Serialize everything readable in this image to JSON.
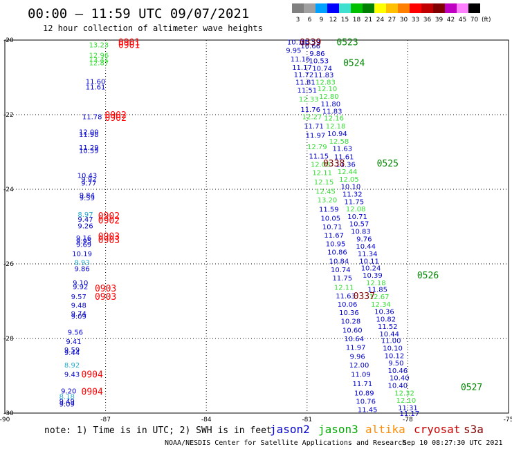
{
  "header": {
    "title": "00:00 – 11:59 UTC 09/07/2021",
    "subtitle": "12 hour collection of altimeter wave heights"
  },
  "legend_bar": {
    "labels": [
      "3",
      "6",
      "9",
      "12",
      "15",
      "18",
      "21",
      "24",
      "27",
      "30",
      "33",
      "36",
      "39",
      "42",
      "45",
      "70"
    ],
    "unit": "(ft)",
    "colors": [
      "#808080",
      "#a0a0a0",
      "#00a0ff",
      "#0000ff",
      "#40e0d0",
      "#00c000",
      "#008000",
      "#ffff00",
      "#ffc000",
      "#ff8000",
      "#ff0000",
      "#c00000",
      "#800000",
      "#c000c0",
      "#ff80ff",
      "#000000"
    ]
  },
  "footer": {
    "note": "note: 1) Time is in UTC; 2) SWH is in feet",
    "missions": [
      {
        "name": "jason2",
        "color": "#0000cc"
      },
      {
        "name": "jason3",
        "color": "#00aa00"
      },
      {
        "name": "altika",
        "color": "#ff8c00"
      },
      {
        "name": "cryosat",
        "color": "#cc0000"
      },
      {
        "name": "s3a",
        "color": "#800000"
      }
    ],
    "credit": "NOAA/NESDIS Center for Satellite Applications and Research",
    "timestamp": "Sep 10 08:27:30 UTC 2021"
  },
  "chart_data": {
    "type": "scatter",
    "xlim": [
      -90,
      -75
    ],
    "ylim": [
      -30,
      -20
    ],
    "xticks": [
      "-90",
      "-87",
      "-84",
      "-81",
      "-78",
      "-75"
    ],
    "yticks": [
      "-20",
      "-22",
      "-24",
      "-26",
      "-28",
      "-30"
    ],
    "colors": {
      "blue": "#0000cc",
      "green": "#33dd33",
      "lightblue": "#22aacc",
      "red": "#ff0000",
      "darkred": "#800000",
      "darkgreen": "#008800"
    },
    "track_labels": [
      {
        "text": "0901",
        "lon": -86.3,
        "lat": -20.05,
        "color": "red"
      },
      {
        "text": "0901",
        "lon": -86.3,
        "lat": -20.12,
        "color": "red"
      },
      {
        "text": "0902",
        "lon": -86.7,
        "lat": -22.0,
        "color": "red"
      },
      {
        "text": "0902",
        "lon": -86.7,
        "lat": -22.07,
        "color": "red"
      },
      {
        "text": "0902",
        "lon": -86.9,
        "lat": -24.7,
        "color": "red"
      },
      {
        "text": "0902",
        "lon": -86.9,
        "lat": -24.82,
        "color": "red"
      },
      {
        "text": "0903",
        "lon": -86.9,
        "lat": -25.25,
        "color": "red"
      },
      {
        "text": "0903",
        "lon": -86.9,
        "lat": -25.35,
        "color": "red"
      },
      {
        "text": "0903",
        "lon": -87.0,
        "lat": -26.65,
        "color": "red"
      },
      {
        "text": "0903",
        "lon": -87.0,
        "lat": -26.87,
        "color": "red"
      },
      {
        "text": "0904",
        "lon": -87.4,
        "lat": -28.95,
        "color": "red"
      },
      {
        "text": "0904",
        "lon": -87.4,
        "lat": -29.42,
        "color": "red"
      },
      {
        "text": "0339",
        "lon": -80.9,
        "lat": -20.05,
        "color": "darkred"
      },
      {
        "text": "0338",
        "lon": -80.2,
        "lat": -23.3,
        "color": "darkred"
      },
      {
        "text": "0337",
        "lon": -79.3,
        "lat": -26.85,
        "color": "darkred"
      },
      {
        "text": "0523",
        "lon": -79.8,
        "lat": -20.05,
        "color": "darkgreen"
      },
      {
        "text": "0524",
        "lon": -79.6,
        "lat": -20.6,
        "color": "darkgreen"
      },
      {
        "text": "0525",
        "lon": -78.6,
        "lat": -23.3,
        "color": "darkgreen"
      },
      {
        "text": "0526",
        "lon": -77.4,
        "lat": -26.3,
        "color": "darkgreen"
      },
      {
        "text": "0527",
        "lon": -76.1,
        "lat": -29.3,
        "color": "darkgreen"
      }
    ],
    "observations": [
      {
        "v": "13.23",
        "lon": -87.2,
        "lat": -20.12,
        "c": "green"
      },
      {
        "v": "12.96",
        "lon": -87.2,
        "lat": -20.4,
        "c": "green"
      },
      {
        "v": "13.41",
        "lon": -87.2,
        "lat": -20.52,
        "c": "green"
      },
      {
        "v": "12.87",
        "lon": -87.2,
        "lat": -20.6,
        "c": "green"
      },
      {
        "v": "11.60",
        "lon": -87.3,
        "lat": -21.1,
        "c": "blue"
      },
      {
        "v": "11.61",
        "lon": -87.3,
        "lat": -21.25,
        "c": "blue"
      },
      {
        "v": "11.78",
        "lon": -87.4,
        "lat": -22.05,
        "c": "blue"
      },
      {
        "v": "12.00",
        "lon": -87.5,
        "lat": -22.45,
        "c": "blue"
      },
      {
        "v": "11.98",
        "lon": -87.5,
        "lat": -22.52,
        "c": "blue"
      },
      {
        "v": "11.29",
        "lon": -87.5,
        "lat": -22.87,
        "c": "blue"
      },
      {
        "v": "10.59",
        "lon": -87.5,
        "lat": -22.95,
        "c": "blue"
      },
      {
        "v": "10.43",
        "lon": -87.55,
        "lat": -23.62,
        "c": "blue"
      },
      {
        "v": "9.92",
        "lon": -87.5,
        "lat": -23.72,
        "c": "blue"
      },
      {
        "v": "9.77",
        "lon": -87.5,
        "lat": -23.82,
        "c": "blue"
      },
      {
        "v": "9.84",
        "lon": -87.55,
        "lat": -24.15,
        "c": "blue"
      },
      {
        "v": "9.59",
        "lon": -87.55,
        "lat": -24.22,
        "c": "blue"
      },
      {
        "v": "8.97",
        "lon": -87.6,
        "lat": -24.67,
        "c": "lightblue"
      },
      {
        "v": "9.47",
        "lon": -87.6,
        "lat": -24.8,
        "c": "blue"
      },
      {
        "v": "9.26",
        "lon": -87.6,
        "lat": -24.97,
        "c": "blue"
      },
      {
        "v": "9.16",
        "lon": -87.65,
        "lat": -25.3,
        "c": "blue"
      },
      {
        "v": "9.95",
        "lon": -87.65,
        "lat": -25.38,
        "c": "blue"
      },
      {
        "v": "9.69",
        "lon": -87.65,
        "lat": -25.47,
        "c": "blue"
      },
      {
        "v": "10.19",
        "lon": -87.7,
        "lat": -25.72,
        "c": "blue"
      },
      {
        "v": "8.93",
        "lon": -87.7,
        "lat": -25.95,
        "c": "lightblue"
      },
      {
        "v": "9.86",
        "lon": -87.7,
        "lat": -26.12,
        "c": "blue"
      },
      {
        "v": "9.10",
        "lon": -87.75,
        "lat": -26.5,
        "c": "blue"
      },
      {
        "v": "9.92",
        "lon": -87.75,
        "lat": -26.6,
        "c": "blue"
      },
      {
        "v": "9.57",
        "lon": -87.8,
        "lat": -26.87,
        "c": "blue"
      },
      {
        "v": "9.48",
        "lon": -87.8,
        "lat": -27.1,
        "c": "blue"
      },
      {
        "v": "9.74",
        "lon": -87.8,
        "lat": -27.32,
        "c": "blue"
      },
      {
        "v": "9.09",
        "lon": -87.8,
        "lat": -27.4,
        "c": "blue"
      },
      {
        "v": "9.56",
        "lon": -87.9,
        "lat": -27.82,
        "c": "blue"
      },
      {
        "v": "9.41",
        "lon": -87.95,
        "lat": -28.07,
        "c": "blue"
      },
      {
        "v": "9.59",
        "lon": -88.0,
        "lat": -28.3,
        "c": "blue"
      },
      {
        "v": "9.44",
        "lon": -88.0,
        "lat": -28.37,
        "c": "blue"
      },
      {
        "v": "8.92",
        "lon": -88.0,
        "lat": -28.7,
        "c": "lightblue"
      },
      {
        "v": "9.43",
        "lon": -88.0,
        "lat": -28.95,
        "c": "blue"
      },
      {
        "v": "9.20",
        "lon": -88.1,
        "lat": -29.4,
        "c": "blue"
      },
      {
        "v": "8.18",
        "lon": -88.15,
        "lat": -29.55,
        "c": "lightblue"
      },
      {
        "v": "9.49",
        "lon": -88.15,
        "lat": -29.68,
        "c": "blue"
      },
      {
        "v": "9.09",
        "lon": -88.15,
        "lat": -29.75,
        "c": "blue"
      },
      {
        "v": "10.10",
        "lon": -81.3,
        "lat": -20.05,
        "c": "blue"
      },
      {
        "v": "10.59",
        "lon": -80.9,
        "lat": -20.05,
        "c": "blue"
      },
      {
        "v": "9.95",
        "lon": -81.4,
        "lat": -20.27,
        "c": "blue"
      },
      {
        "v": "10.66",
        "lon": -80.9,
        "lat": -20.15,
        "c": "blue"
      },
      {
        "v": "9.86",
        "lon": -80.7,
        "lat": -20.35,
        "c": "blue"
      },
      {
        "v": "11.16",
        "lon": -81.2,
        "lat": -20.5,
        "c": "blue"
      },
      {
        "v": "10.53",
        "lon": -80.65,
        "lat": -20.55,
        "c": "blue"
      },
      {
        "v": "11.17",
        "lon": -81.15,
        "lat": -20.72,
        "c": "blue"
      },
      {
        "v": "10.74",
        "lon": -80.55,
        "lat": -20.75,
        "c": "blue"
      },
      {
        "v": "11.72",
        "lon": -81.1,
        "lat": -20.92,
        "c": "blue"
      },
      {
        "v": "11.83",
        "lon": -80.5,
        "lat": -20.93,
        "c": "blue"
      },
      {
        "v": "11.81",
        "lon": -81.05,
        "lat": -21.12,
        "c": "blue"
      },
      {
        "v": "12.83",
        "lon": -80.45,
        "lat": -21.12,
        "c": "green"
      },
      {
        "v": "11.51",
        "lon": -81.0,
        "lat": -21.33,
        "c": "blue"
      },
      {
        "v": "12.10",
        "lon": -80.4,
        "lat": -21.3,
        "c": "green"
      },
      {
        "v": "12.33",
        "lon": -80.95,
        "lat": -21.57,
        "c": "green"
      },
      {
        "v": "12.80",
        "lon": -80.35,
        "lat": -21.5,
        "c": "green"
      },
      {
        "v": "11.80",
        "lon": -80.3,
        "lat": -21.7,
        "c": "blue"
      },
      {
        "v": "11.76",
        "lon": -80.9,
        "lat": -21.85,
        "c": "blue"
      },
      {
        "v": "11.83",
        "lon": -80.25,
        "lat": -21.9,
        "c": "blue"
      },
      {
        "v": "12.27",
        "lon": -80.85,
        "lat": -22.05,
        "c": "green"
      },
      {
        "v": "12.16",
        "lon": -80.2,
        "lat": -22.08,
        "c": "green"
      },
      {
        "v": "11.71",
        "lon": -80.8,
        "lat": -22.3,
        "c": "blue"
      },
      {
        "v": "12.18",
        "lon": -80.15,
        "lat": -22.3,
        "c": "green"
      },
      {
        "v": "11.97",
        "lon": -80.75,
        "lat": -22.55,
        "c": "blue"
      },
      {
        "v": "10.94",
        "lon": -80.1,
        "lat": -22.5,
        "c": "blue"
      },
      {
        "v": "12.79",
        "lon": -80.7,
        "lat": -22.85,
        "c": "green"
      },
      {
        "v": "12.58",
        "lon": -80.05,
        "lat": -22.7,
        "c": "green"
      },
      {
        "v": "11.15",
        "lon": -80.65,
        "lat": -23.1,
        "c": "blue"
      },
      {
        "v": "11.63",
        "lon": -79.95,
        "lat": -22.9,
        "c": "blue"
      },
      {
        "v": "11.61",
        "lon": -79.9,
        "lat": -23.12,
        "c": "blue"
      },
      {
        "v": "12.08",
        "lon": -80.6,
        "lat": -23.32,
        "c": "green"
      },
      {
        "v": "11.36",
        "lon": -79.85,
        "lat": -23.32,
        "c": "blue"
      },
      {
        "v": "12.11",
        "lon": -80.55,
        "lat": -23.55,
        "c": "green"
      },
      {
        "v": "12.44",
        "lon": -79.8,
        "lat": -23.52,
        "c": "green"
      },
      {
        "v": "12.15",
        "lon": -80.5,
        "lat": -23.8,
        "c": "green"
      },
      {
        "v": "12.05",
        "lon": -79.75,
        "lat": -23.72,
        "c": "green"
      },
      {
        "v": "10.10",
        "lon": -79.7,
        "lat": -23.92,
        "c": "blue"
      },
      {
        "v": "12.45",
        "lon": -80.45,
        "lat": -24.05,
        "c": "green"
      },
      {
        "v": "11.32",
        "lon": -79.65,
        "lat": -24.12,
        "c": "blue"
      },
      {
        "v": "13.20",
        "lon": -80.4,
        "lat": -24.28,
        "c": "green"
      },
      {
        "v": "11.75",
        "lon": -79.6,
        "lat": -24.32,
        "c": "blue"
      },
      {
        "v": "11.59",
        "lon": -80.35,
        "lat": -24.53,
        "c": "blue"
      },
      {
        "v": "12.08",
        "lon": -79.55,
        "lat": -24.52,
        "c": "green"
      },
      {
        "v": "10.05",
        "lon": -80.3,
        "lat": -24.77,
        "c": "blue"
      },
      {
        "v": "10.71",
        "lon": -79.5,
        "lat": -24.72,
        "c": "blue"
      },
      {
        "v": "10.71",
        "lon": -80.25,
        "lat": -25.0,
        "c": "blue"
      },
      {
        "v": "10.57",
        "lon": -79.45,
        "lat": -24.92,
        "c": "blue"
      },
      {
        "v": "10.83",
        "lon": -79.4,
        "lat": -25.12,
        "c": "blue"
      },
      {
        "v": "11.67",
        "lon": -80.2,
        "lat": -25.22,
        "c": "blue"
      },
      {
        "v": "9.76",
        "lon": -79.3,
        "lat": -25.32,
        "c": "blue"
      },
      {
        "v": "10.95",
        "lon": -80.15,
        "lat": -25.45,
        "c": "blue"
      },
      {
        "v": "10.44",
        "lon": -79.25,
        "lat": -25.52,
        "c": "blue"
      },
      {
        "v": "10.86",
        "lon": -80.1,
        "lat": -25.68,
        "c": "blue"
      },
      {
        "v": "11.34",
        "lon": -79.2,
        "lat": -25.72,
        "c": "blue"
      },
      {
        "v": "10.84",
        "lon": -80.05,
        "lat": -25.92,
        "c": "blue"
      },
      {
        "v": "10.11",
        "lon": -79.15,
        "lat": -25.92,
        "c": "blue"
      },
      {
        "v": "10.24",
        "lon": -79.1,
        "lat": -26.1,
        "c": "blue"
      },
      {
        "v": "10.74",
        "lon": -80.0,
        "lat": -26.15,
        "c": "blue"
      },
      {
        "v": "10.39",
        "lon": -79.05,
        "lat": -26.3,
        "c": "blue"
      },
      {
        "v": "11.75",
        "lon": -79.95,
        "lat": -26.37,
        "c": "blue"
      },
      {
        "v": "12.18",
        "lon": -78.95,
        "lat": -26.5,
        "c": "green"
      },
      {
        "v": "12.11",
        "lon": -79.9,
        "lat": -26.62,
        "c": "green"
      },
      {
        "v": "11.85",
        "lon": -78.9,
        "lat": -26.68,
        "c": "blue"
      },
      {
        "v": "11.63",
        "lon": -79.85,
        "lat": -26.85,
        "c": "blue"
      },
      {
        "v": "12.67",
        "lon": -78.85,
        "lat": -26.87,
        "c": "green"
      },
      {
        "v": "10.06",
        "lon": -79.8,
        "lat": -27.07,
        "c": "blue"
      },
      {
        "v": "12.34",
        "lon": -78.8,
        "lat": -27.07,
        "c": "green"
      },
      {
        "v": "10.36",
        "lon": -79.75,
        "lat": -27.3,
        "c": "blue"
      },
      {
        "v": "10.36",
        "lon": -78.7,
        "lat": -27.27,
        "c": "blue"
      },
      {
        "v": "10.28",
        "lon": -79.7,
        "lat": -27.53,
        "c": "blue"
      },
      {
        "v": "10.82",
        "lon": -78.65,
        "lat": -27.47,
        "c": "blue"
      },
      {
        "v": "11.52",
        "lon": -78.6,
        "lat": -27.67,
        "c": "blue"
      },
      {
        "v": "10.60",
        "lon": -79.65,
        "lat": -27.77,
        "c": "blue"
      },
      {
        "v": "10.44",
        "lon": -78.55,
        "lat": -27.87,
        "c": "blue"
      },
      {
        "v": "10.64",
        "lon": -79.6,
        "lat": -28.0,
        "c": "blue"
      },
      {
        "v": "11.00",
        "lon": -78.5,
        "lat": -28.05,
        "c": "blue"
      },
      {
        "v": "11.97",
        "lon": -79.55,
        "lat": -28.23,
        "c": "blue"
      },
      {
        "v": "10.10",
        "lon": -78.45,
        "lat": -28.25,
        "c": "blue"
      },
      {
        "v": "9.96",
        "lon": -79.5,
        "lat": -28.47,
        "c": "blue"
      },
      {
        "v": "10.12",
        "lon": -78.4,
        "lat": -28.45,
        "c": "blue"
      },
      {
        "v": "9.50",
        "lon": -78.35,
        "lat": -28.65,
        "c": "blue"
      },
      {
        "v": "12.00",
        "lon": -79.45,
        "lat": -28.7,
        "c": "blue"
      },
      {
        "v": "10.46",
        "lon": -78.3,
        "lat": -28.85,
        "c": "blue"
      },
      {
        "v": "11.09",
        "lon": -79.4,
        "lat": -28.95,
        "c": "blue"
      },
      {
        "v": "10.40",
        "lon": -78.25,
        "lat": -29.05,
        "c": "blue"
      },
      {
        "v": "11.71",
        "lon": -79.35,
        "lat": -29.2,
        "c": "blue"
      },
      {
        "v": "10.40",
        "lon": -78.3,
        "lat": -29.25,
        "c": "blue"
      },
      {
        "v": "12.32",
        "lon": -78.1,
        "lat": -29.45,
        "c": "green"
      },
      {
        "v": "10.89",
        "lon": -79.3,
        "lat": -29.45,
        "c": "blue"
      },
      {
        "v": "12.10",
        "lon": -78.05,
        "lat": -29.65,
        "c": "green"
      },
      {
        "v": "10.76",
        "lon": -79.25,
        "lat": -29.68,
        "c": "blue"
      },
      {
        "v": "11.31",
        "lon": -78.0,
        "lat": -29.85,
        "c": "blue"
      },
      {
        "v": "11.45",
        "lon": -79.2,
        "lat": -29.9,
        "c": "blue"
      },
      {
        "v": "11.17",
        "lon": -77.95,
        "lat": -30.0,
        "c": "blue"
      }
    ]
  }
}
